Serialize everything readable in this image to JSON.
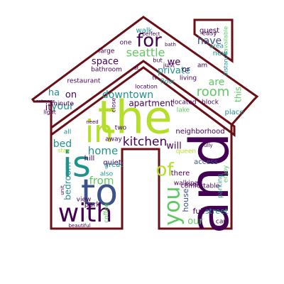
{
  "image": {
    "kind": "word cloud",
    "shape": "house",
    "background_color": "#ffffff",
    "outline_color": "#6b0f16",
    "palette": [
      "#440154",
      "#3b528b",
      "#21918c",
      "#5ec962",
      "#b5de2b",
      "#fde725"
    ]
  },
  "words": [
    {
      "text": "the"
    },
    {
      "text": "and"
    },
    {
      "text": "in"
    },
    {
      "text": "to"
    },
    {
      "text": "is"
    },
    {
      "text": "with"
    },
    {
      "text": "you"
    },
    {
      "text": "of"
    },
    {
      "text": "for"
    },
    {
      "text": "seattle"
    },
    {
      "text": "room"
    },
    {
      "text": "kitchen"
    },
    {
      "text": "home"
    },
    {
      "text": "bed"
    },
    {
      "text": "bedroom"
    },
    {
      "text": "from"
    },
    {
      "text": "downtown"
    },
    {
      "text": "apartment"
    },
    {
      "text": "private"
    },
    {
      "text": "space"
    },
    {
      "text": "have"
    },
    {
      "text": "are"
    },
    {
      "text": "your"
    },
    {
      "text": "on"
    },
    {
      "text": "it"
    },
    {
      "text": "ha"
    },
    {
      "text": "we"
    },
    {
      "text": "or"
    },
    {
      "text": "will"
    },
    {
      "text": "our"
    },
    {
      "text": "house"
    },
    {
      "text": "street"
    },
    {
      "text": "full"
    },
    {
      "text": "access"
    },
    {
      "text": "neighborhood"
    },
    {
      "text": "there"
    },
    {
      "text": "walk"
    },
    {
      "text": "guest"
    },
    {
      "text": "bathroom"
    },
    {
      "text": "restaurant"
    },
    {
      "text": "minute"
    },
    {
      "text": "located"
    },
    {
      "text": "block"
    },
    {
      "text": "place"
    },
    {
      "text": "living"
    },
    {
      "text": "quiet"
    },
    {
      "text": "park"
    },
    {
      "text": "view"
    },
    {
      "text": "coffee"
    },
    {
      "text": "walking"
    },
    {
      "text": "parking"
    },
    {
      "text": "comfortable"
    },
    {
      "text": "enjoy"
    },
    {
      "text": "queen"
    },
    {
      "text": "great"
    },
    {
      "text": "also"
    },
    {
      "text": "hill"
    },
    {
      "text": "two"
    },
    {
      "text": "away"
    },
    {
      "text": "large"
    },
    {
      "text": "new"
    },
    {
      "text": "one"
    },
    {
      "text": "just"
    },
    {
      "text": "am"
    },
    {
      "text": "area"
    },
    {
      "text": "easy"
    },
    {
      "text": "available"
    },
    {
      "text": "distance"
    },
    {
      "text": "floor"
    },
    {
      "text": "location"
    },
    {
      "text": "light"
    },
    {
      "text": "close"
    },
    {
      "text": "lake"
    },
    {
      "text": "fully"
    },
    {
      "text": "can"
    },
    {
      "text": "beautiful"
    },
    {
      "text": "tv"
    },
    {
      "text": "at"
    },
    {
      "text": "all"
    },
    {
      "text": "stay"
    },
    {
      "text": "but"
    },
    {
      "text": "perfect"
    },
    {
      "text": "bath"
    },
    {
      "text": "shop"
    },
    {
      "text": "need"
    },
    {
      "text": "unit"
    },
    {
      "text": "entrance"
    },
    {
      "text": "this"
    }
  ]
}
